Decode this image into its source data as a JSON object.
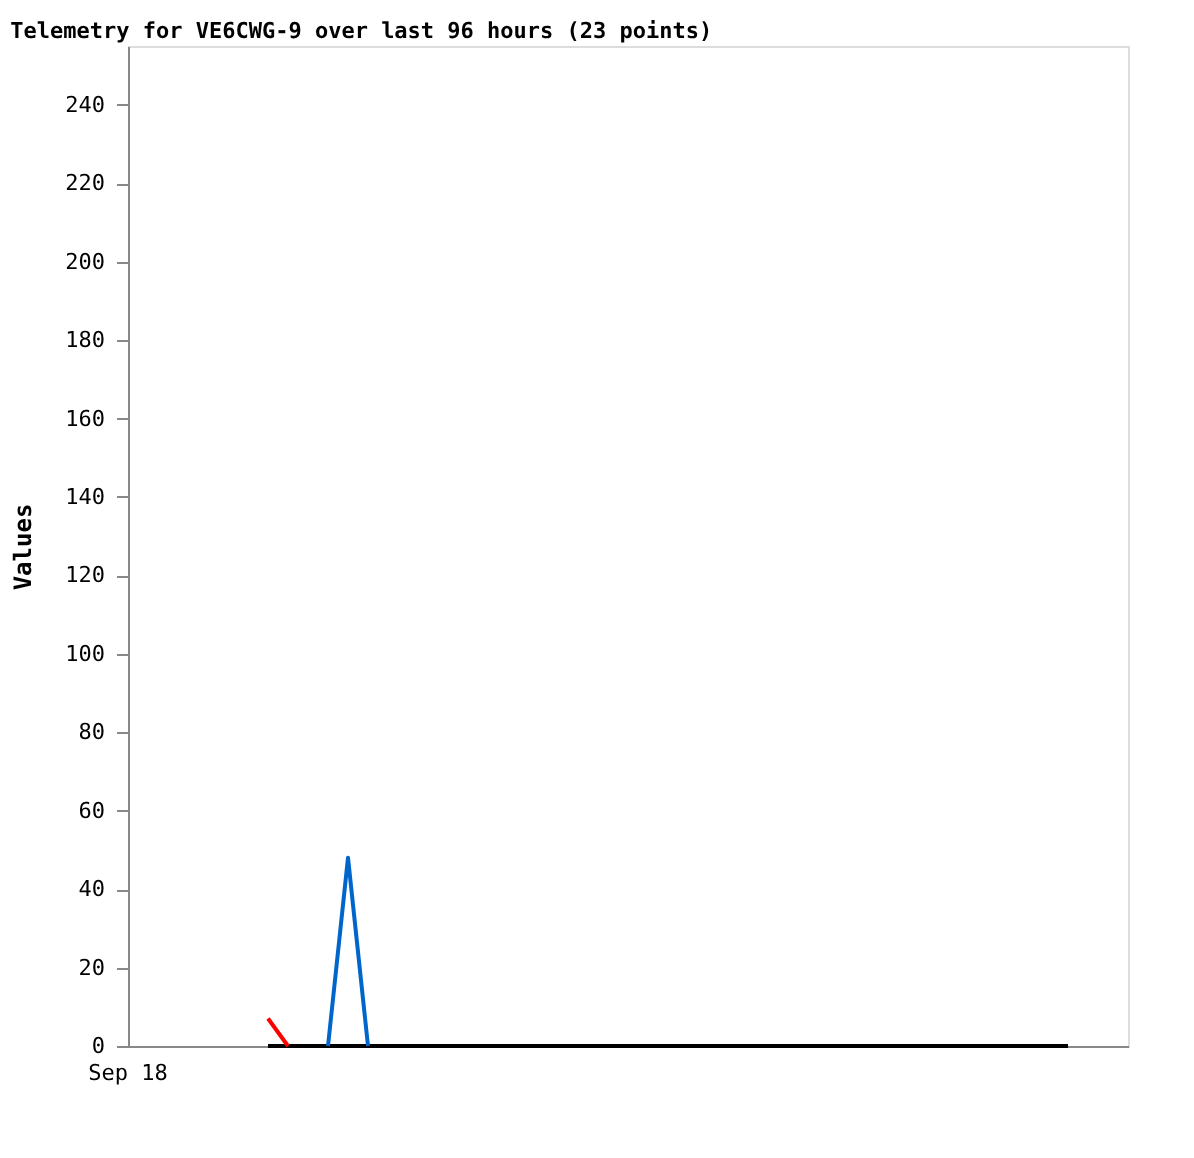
{
  "chart_data": {
    "type": "line",
    "title": "Telemetry for VE6CWG-9 over last 96 hours (23 points)",
    "ylabel": "Values",
    "categories": [
      null,
      null,
      null,
      null,
      null,
      null,
      null,
      null,
      null,
      null,
      null,
      null,
      null,
      null,
      null,
      null,
      null,
      null,
      null,
      null,
      null,
      null,
      null,
      null,
      null,
      null,
      null,
      null,
      null,
      null,
      null,
      null,
      null,
      null,
      null,
      null,
      null,
      null,
      null,
      null,
      null,
      null,
      null,
      null,
      null,
      null,
      null,
      null,
      null,
      null,
      null
    ],
    "annotations": [
      "Sep 18"
    ],
    "ylim": [
      0,
      255
    ],
    "yticks": [
      0,
      20,
      40,
      60,
      80,
      100,
      120,
      140,
      160,
      180,
      200,
      220,
      240
    ],
    "grid": false,
    "marker": "none",
    "line_style": "solid",
    "series": [
      {
        "color": "#000000",
        "values": [
          null,
          null,
          null,
          null,
          null,
          null,
          null,
          0,
          0,
          0,
          0,
          0,
          0,
          0,
          0,
          0,
          0,
          0,
          0,
          0,
          0,
          0,
          0,
          0,
          0,
          0,
          0,
          0,
          0,
          0,
          0,
          0,
          0,
          0,
          0,
          0,
          0,
          0,
          0,
          0,
          0,
          0,
          0,
          0,
          0,
          0,
          0,
          0,
          null,
          null,
          null
        ]
      },
      {
        "color": "#ff0000",
        "values": [
          null,
          null,
          null,
          null,
          null,
          null,
          null,
          7,
          0,
          null,
          null,
          null,
          null,
          null,
          null,
          null,
          null,
          null,
          null,
          null,
          null,
          null,
          null,
          null,
          null,
          null,
          null,
          null,
          null,
          null,
          null,
          null,
          null,
          null,
          null,
          null,
          null,
          null,
          null,
          null,
          null,
          null,
          null,
          null,
          null,
          null,
          null,
          null,
          null,
          null,
          null
        ]
      },
      {
        "color": "#0066cc",
        "values": [
          null,
          null,
          null,
          null,
          null,
          null,
          null,
          null,
          null,
          null,
          0,
          48,
          0,
          null,
          null,
          null,
          null,
          null,
          null,
          null,
          null,
          null,
          null,
          null,
          null,
          null,
          null,
          null,
          null,
          null,
          null,
          null,
          null,
          null,
          null,
          null,
          null,
          null,
          null,
          null,
          null,
          null,
          null,
          null,
          null,
          null,
          null,
          null,
          null,
          null,
          null
        ]
      }
    ]
  }
}
